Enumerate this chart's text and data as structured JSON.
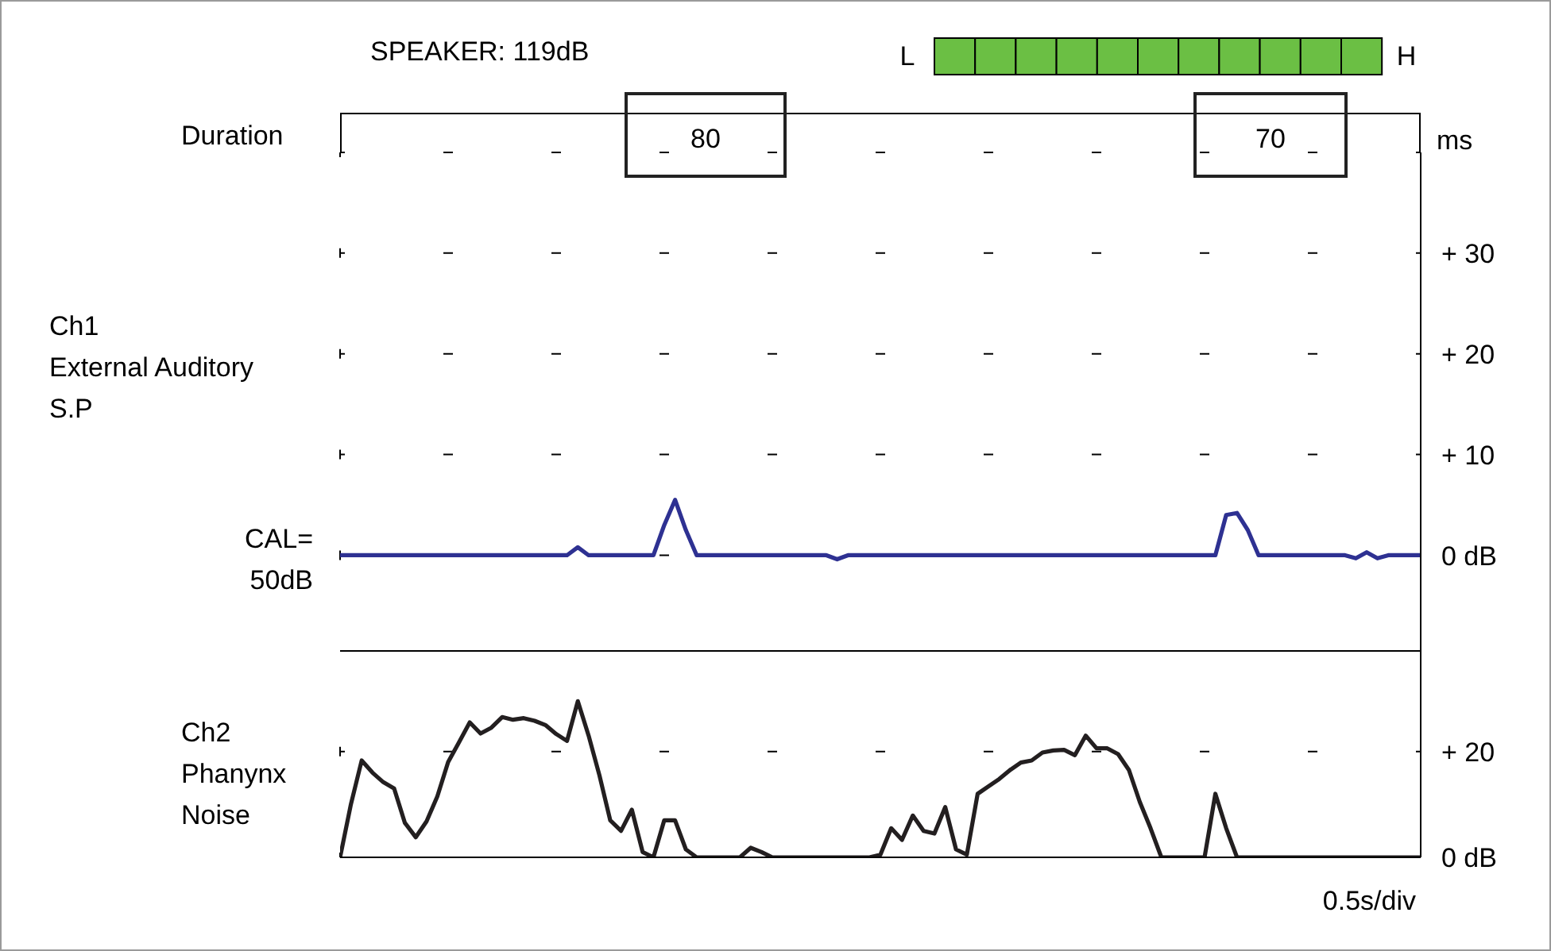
{
  "chart_data": [
    {
      "type": "line",
      "title": "SPEAKER: 119dB",
      "ylabel": "Ch1\nExternal Auditory\nS.P",
      "annotations": [
        "L",
        "H",
        "Duration",
        "80",
        "70",
        "ms",
        "CAL=\n50dB"
      ],
      "categories": [
        null,
        null,
        null,
        null,
        null,
        null,
        null,
        null,
        null,
        null,
        null,
        null,
        null,
        null,
        null,
        null,
        null,
        null,
        null,
        null,
        null,
        null,
        null,
        null,
        null,
        null,
        null,
        null,
        null,
        null,
        null,
        null,
        null,
        null,
        null,
        null,
        null,
        null,
        null,
        null,
        null,
        null,
        null,
        null,
        null,
        null,
        null,
        null,
        null,
        null,
        null,
        null,
        null,
        null,
        null,
        null,
        null,
        null,
        null,
        null,
        null,
        null,
        null,
        null,
        null,
        null,
        null,
        null,
        null,
        null,
        null,
        null,
        null,
        null,
        null,
        null,
        null,
        null,
        null,
        null,
        null,
        null,
        null,
        null,
        null,
        null,
        null,
        null,
        null,
        null,
        null,
        null,
        null,
        null,
        null,
        null,
        null,
        null,
        null,
        null,
        null
      ],
      "series": [
        {
          "color": "#2e3192",
          "values": [
            0,
            0,
            0,
            0,
            0,
            0,
            0,
            0,
            0,
            0,
            0,
            0,
            0,
            0,
            0,
            0,
            0,
            0,
            0,
            0,
            0,
            0,
            0.8,
            0,
            0,
            0,
            0,
            0,
            0,
            0,
            3,
            5.5,
            2.5,
            0,
            0,
            0,
            0,
            0,
            0,
            0,
            0,
            0,
            0,
            0,
            0,
            0,
            -0.4,
            0,
            0,
            0,
            0,
            0,
            0,
            0,
            0,
            0,
            0,
            0,
            0,
            0,
            0,
            0,
            0,
            0,
            0,
            0,
            0,
            0,
            0,
            0,
            0,
            0,
            0,
            0,
            0,
            0,
            0,
            0,
            0,
            0,
            0,
            0,
            4,
            4.2,
            2.5,
            0,
            0,
            0,
            0,
            0,
            0,
            0,
            0,
            0,
            -0.3,
            0.3,
            -0.3,
            0,
            0,
            0,
            0
          ]
        }
      ],
      "ylim": [
        -9.5,
        40
      ],
      "yticks": [
        {
          "value": 0,
          "label": "0 dB"
        },
        {
          "value": 10,
          "label": "+ 10"
        },
        {
          "value": 20,
          "label": "+ 20"
        },
        {
          "value": 30,
          "label": "+ 30"
        },
        {
          "value": 40,
          "label": null
        }
      ],
      "grid": true,
      "tick_labels": "y"
    },
    {
      "type": "line",
      "ylabel": "Ch2\nPhanynx\nNoise",
      "xlabel": "0.5s/div",
      "categories": [
        null,
        null,
        null,
        null,
        null,
        null,
        null,
        null,
        null,
        null,
        null,
        null,
        null,
        null,
        null,
        null,
        null,
        null,
        null,
        null,
        null,
        null,
        null,
        null,
        null,
        null,
        null,
        null,
        null,
        null,
        null,
        null,
        null,
        null,
        null,
        null,
        null,
        null,
        null,
        null,
        null,
        null,
        null,
        null,
        null,
        null,
        null,
        null,
        null,
        null,
        null,
        null,
        null,
        null,
        null,
        null,
        null,
        null,
        null,
        null,
        null,
        null,
        null,
        null,
        null,
        null,
        null,
        null,
        null,
        null,
        null,
        null,
        null,
        null,
        null,
        null,
        null,
        null,
        null,
        null,
        null,
        null,
        null,
        null,
        null,
        null,
        null,
        null,
        null,
        null,
        null,
        null,
        null,
        null,
        null,
        null,
        null,
        null,
        null,
        null,
        null
      ],
      "series": [
        {
          "color": "#231f20",
          "values": [
            0,
            10,
            18.3,
            16,
            14.2,
            13,
            6.5,
            3.8,
            6.8,
            11.5,
            18,
            21.7,
            25.5,
            23.4,
            24.5,
            26.5,
            26,
            26.3,
            25.8,
            25,
            23.3,
            22,
            29.5,
            23,
            15.5,
            7,
            5,
            9,
            1,
            0,
            7,
            7,
            1.5,
            0,
            0,
            0,
            0,
            0,
            1.8,
            1,
            0,
            0,
            0,
            0,
            0,
            0,
            0,
            0,
            0,
            0,
            0.5,
            5.5,
            3.3,
            7.9,
            5,
            4.5,
            9.5,
            1.5,
            0.5,
            12,
            13.4,
            14.8,
            16.5,
            17.9,
            18.3,
            19.8,
            20.2,
            20.3,
            19.3,
            23,
            20.6,
            20.6,
            19.5,
            16.5,
            10.5,
            5.5,
            0,
            0,
            0,
            0,
            0,
            12,
            5.5,
            0,
            0,
            0,
            0,
            0,
            0,
            0,
            0,
            0,
            0,
            0,
            0,
            0,
            0,
            0,
            0,
            0,
            0
          ]
        }
      ],
      "ylim": [
        0,
        39
      ],
      "yticks": [
        {
          "value": 0,
          "label": "0 dB"
        },
        {
          "value": 20,
          "label": "+ 20"
        }
      ],
      "grid": true,
      "tick_labels": "y"
    }
  ]
}
